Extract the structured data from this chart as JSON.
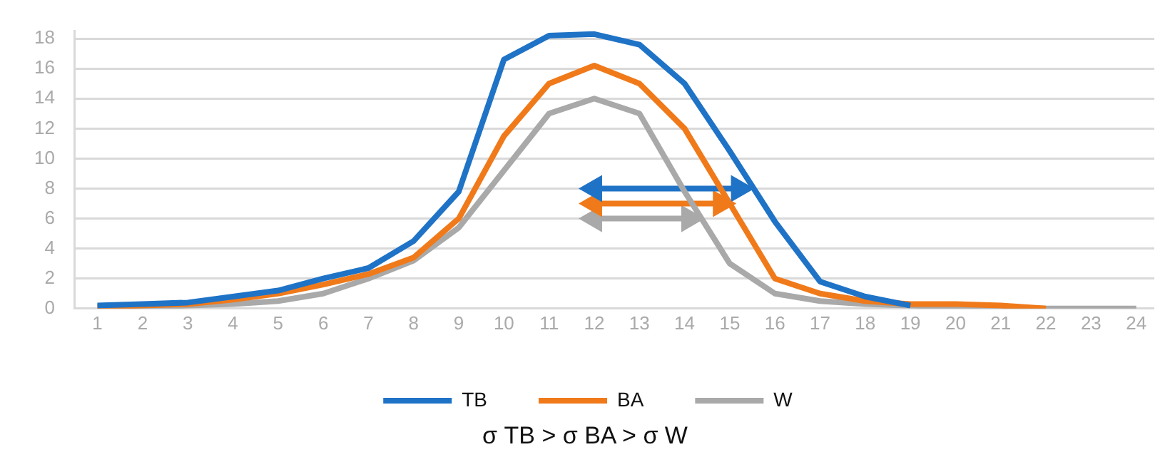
{
  "chart_data": {
    "type": "line",
    "x": [
      1,
      2,
      3,
      4,
      5,
      6,
      7,
      8,
      9,
      10,
      11,
      12,
      13,
      14,
      15,
      16,
      17,
      18,
      19,
      20,
      21,
      22,
      23,
      24
    ],
    "series": [
      {
        "name": "TB",
        "color": "#1f73c6",
        "values": [
          0.2,
          0.3,
          0.4,
          0.8,
          1.2,
          2.0,
          2.7,
          4.5,
          7.8,
          16.6,
          18.2,
          18.3,
          17.6,
          15.0,
          10.5,
          5.8,
          1.8,
          0.8,
          0.2,
          null,
          null,
          null,
          null,
          null
        ]
      },
      {
        "name": "BA",
        "color": "#f07a1a",
        "values": [
          0.1,
          0.2,
          0.3,
          0.6,
          1.0,
          1.6,
          2.3,
          3.4,
          6.0,
          11.5,
          15.0,
          16.2,
          15.0,
          12.0,
          7.0,
          2.0,
          1.0,
          0.5,
          0.3,
          0.3,
          0.2,
          0.0,
          null,
          null
        ]
      },
      {
        "name": "W",
        "color": "#a9a9a9",
        "values": [
          0.1,
          0.1,
          0.2,
          0.3,
          0.5,
          1.0,
          2.0,
          3.2,
          5.4,
          9.2,
          13.0,
          14.0,
          13.0,
          7.8,
          3.0,
          1.0,
          0.5,
          0.3,
          0.2,
          0.1,
          0.1,
          0.0,
          0.0,
          0.0
        ]
      },
      {
        "color": "#1f73c6",
        "x": [
          12,
          15.2
        ],
        "values": [
          8,
          8
        ],
        "marker": "triangle"
      },
      {
        "color": "#f07a1a",
        "x": [
          12,
          14.8
        ],
        "values": [
          7,
          7
        ],
        "marker": "triangle"
      },
      {
        "color": "#a9a9a9",
        "x": [
          12,
          14.1
        ],
        "values": [
          6,
          6
        ],
        "marker": "triangle"
      }
    ],
    "xlim": [
      0.5,
      24.4
    ],
    "xticks": [
      1,
      2,
      3,
      4,
      5,
      6,
      7,
      8,
      9,
      10,
      11,
      12,
      13,
      14,
      15,
      16,
      17,
      18,
      19,
      20,
      21,
      22,
      23,
      24
    ],
    "ylim": [
      0,
      18.5
    ],
    "yticks": [
      0,
      2,
      4,
      6,
      8,
      10,
      12,
      14,
      16,
      18
    ],
    "grid": "y",
    "legend": "bottom",
    "marker": "none",
    "line_style": "solid",
    "annotations": [
      "σ TB > σ BA  > σ W"
    ]
  }
}
